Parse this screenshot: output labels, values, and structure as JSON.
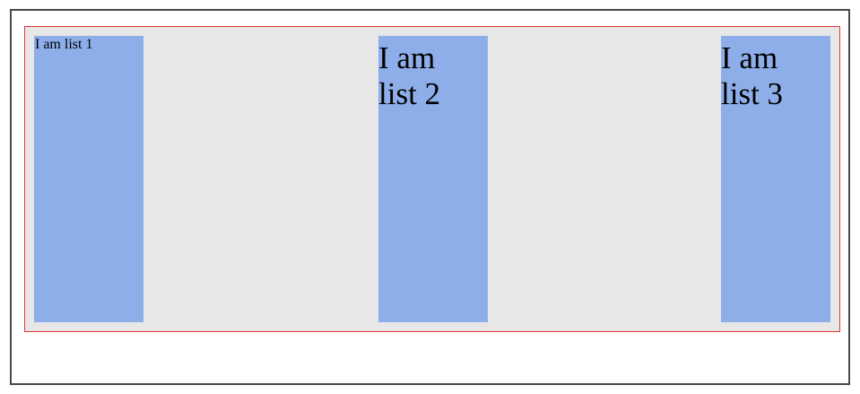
{
  "colors": {
    "container_background": "#e7e7e8",
    "container_border": "#e53935",
    "list_background": "#8eaeea",
    "frame_border": "#4a4a4a"
  },
  "lists": [
    {
      "label": "I am list 1"
    },
    {
      "label": "I am list 2"
    },
    {
      "label": "I am list 3"
    }
  ]
}
